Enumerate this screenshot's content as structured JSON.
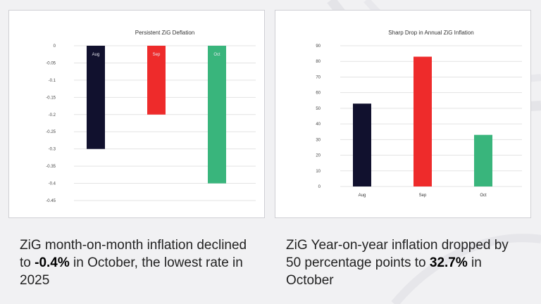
{
  "colors": {
    "Aug": "#11112e",
    "Sep": "#ee2b2b",
    "Oct": "#39b57c",
    "grid": "#e3e3e3"
  },
  "chart_data": [
    {
      "type": "bar",
      "title": "Persistent ZiG Deflation",
      "categories": [
        "Aug",
        "Sep",
        "Oct"
      ],
      "values": [
        -0.3,
        -0.2,
        -0.4
      ],
      "ylim": [
        -0.45,
        0
      ],
      "yticks": [
        "0",
        "-0.05",
        "-0.1",
        "-0.15",
        "-0.2",
        "-0.25",
        "-0.3",
        "-0.35",
        "-0.4",
        "-0.45"
      ],
      "category_labels_position": "inside-top",
      "grid": true
    },
    {
      "type": "bar",
      "title": "Sharp Drop in Annual ZiG Inflation",
      "categories": [
        "Aug",
        "Sep",
        "Oct"
      ],
      "values": [
        53,
        83,
        33
      ],
      "ylim": [
        0,
        90
      ],
      "yticks": [
        "0",
        "10",
        "20",
        "30",
        "40",
        "50",
        "60",
        "70",
        "80",
        "90"
      ],
      "category_labels_position": "bottom",
      "grid": true
    }
  ],
  "captions": {
    "left": {
      "before": "ZiG month-on-month inflation declined to ",
      "bold": "-0.4%",
      "after": " in October, the lowest rate in 2025"
    },
    "right": {
      "before": "ZiG Year-on-year inflation dropped by 50 percentage points to ",
      "bold": "32.7%",
      "after": " in October"
    }
  }
}
